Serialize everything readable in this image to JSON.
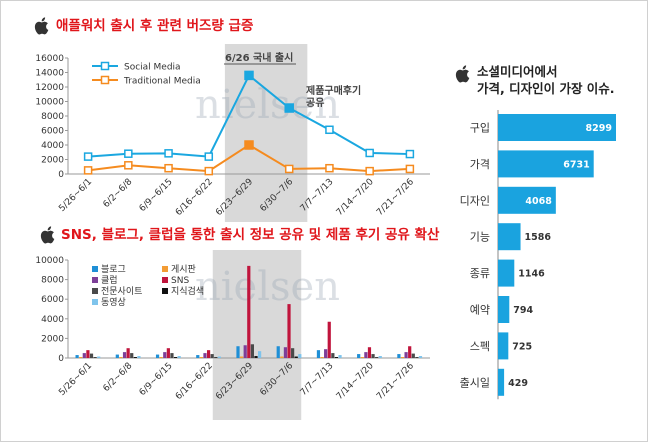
{
  "colors": {
    "title_red": "#e0161b",
    "social": "#1aa7e0",
    "traditional": "#f58b1f",
    "blog": "#1f8fd6",
    "bulletin": "#f39c34",
    "club": "#7d3f98",
    "sns": "#c0143c",
    "pro_site": "#4a4a4a",
    "knowledge": "#111111",
    "video": "#7fc4ec",
    "hbar": "#1aa3df",
    "highlight": "#d9d9d9"
  },
  "icons": {
    "brand": "apple-logo-icon"
  },
  "watermark": "nielsen",
  "chart_data": [
    {
      "type": "line",
      "title": "애플워치 출시 후 관련 버즈량 급증",
      "categories": [
        "5/26~6/1",
        "6/2~6/8",
        "6/9~6/15",
        "6/16~6/22",
        "6/23~6/29",
        "6/30~7/6",
        "7/7~7/13",
        "7/14~7/20",
        "7/21~7/26"
      ],
      "series": [
        {
          "name": "Social Media",
          "values": [
            2400,
            2800,
            2850,
            2400,
            13600,
            9100,
            6100,
            2900,
            2750
          ]
        },
        {
          "name": "Traditional Media",
          "values": [
            500,
            1200,
            800,
            400,
            4000,
            700,
            800,
            400,
            700
          ]
        }
      ],
      "ylim": [
        0,
        16000
      ],
      "yticks": [
        "0",
        "2000",
        "4000",
        "6000",
        "8000",
        "10000",
        "12000",
        "14000",
        "16000"
      ],
      "highlight_range": [
        "6/23~6/29",
        "6/30~7/6"
      ],
      "annotations": [
        "6/26 국내 출시",
        "제품구매후기",
        "공유"
      ],
      "legend": "top-left",
      "grid": false
    },
    {
      "type": "bar",
      "title": "SNS, 블로그, 클럽을 통한 출시 정보 공유 및 제품 후기 공유 확산",
      "categories": [
        "5/26~6/1",
        "6/2~6/8",
        "6/9~6/15",
        "6/16~6/22",
        "6/23~6/29",
        "6/30~7/6",
        "7/7~7/13",
        "7/14~7/20",
        "7/21~7/26"
      ],
      "series": [
        {
          "name": "블로그",
          "values": [
            300,
            350,
            350,
            300,
            1200,
            1200,
            800,
            400,
            400
          ]
        },
        {
          "name": "게시판",
          "values": [
            100,
            100,
            100,
            100,
            150,
            150,
            100,
            100,
            100
          ]
        },
        {
          "name": "클럽",
          "values": [
            500,
            600,
            600,
            500,
            1300,
            1100,
            900,
            600,
            600
          ]
        },
        {
          "name": "SNS",
          "values": [
            800,
            1000,
            1000,
            800,
            9400,
            5500,
            3700,
            1100,
            1200
          ]
        },
        {
          "name": "전문사이트",
          "values": [
            450,
            500,
            500,
            400,
            1400,
            1000,
            500,
            400,
            450
          ]
        },
        {
          "name": "지식검색",
          "values": [
            80,
            100,
            100,
            80,
            200,
            150,
            100,
            80,
            80
          ]
        },
        {
          "name": "동영상",
          "values": [
            150,
            200,
            200,
            150,
            700,
            400,
            300,
            200,
            200
          ]
        }
      ],
      "ylim": [
        0,
        10000
      ],
      "yticks": [
        "0",
        "2000",
        "4000",
        "6000",
        "8000",
        "10000"
      ],
      "highlight_range": [
        "6/16~6/22",
        "6/30~7/6"
      ],
      "legend": "top-left",
      "grid": false
    },
    {
      "type": "bar",
      "orientation": "horizontal",
      "title_lines": [
        "소셜미디어에서",
        "가격, 디자인이 가장 이슈."
      ],
      "categories": [
        "구입",
        "가격",
        "디자인",
        "기능",
        "종류",
        "예약",
        "스펙",
        "출시일"
      ],
      "values": [
        8299,
        6731,
        4068,
        1586,
        1146,
        794,
        725,
        429
      ],
      "labels": [
        "8299",
        "6731",
        "4068",
        "1586",
        "1146",
        "794",
        "725",
        "429"
      ]
    }
  ]
}
